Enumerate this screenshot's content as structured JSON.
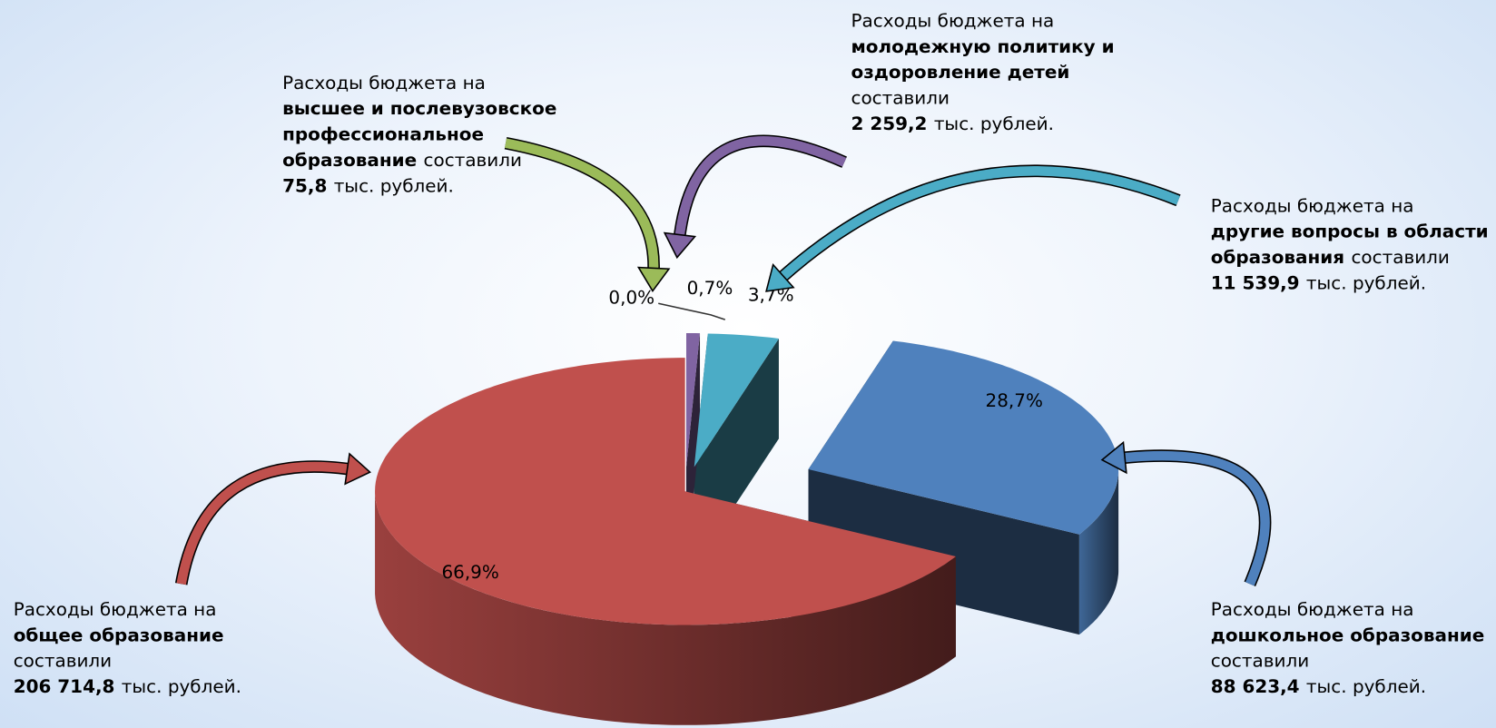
{
  "chart_data": {
    "type": "pie",
    "three_d": true,
    "values": [
      66.9,
      28.7,
      3.7,
      0.7,
      0.0
    ],
    "value_labels": [
      "66,9%",
      "28,7%",
      "3,7%",
      "0,7%",
      "0,0%"
    ],
    "colors": [
      "#c0504d",
      "#4f81bd",
      "#4bacc6",
      "#8064a2",
      "#9bbb59"
    ],
    "callouts": [
      {
        "lines": [
          [
            {
              "text": "Расходы бюджета на"
            }
          ],
          [
            {
              "text": "общее образование",
              "bold": true
            }
          ],
          [
            {
              "text": "составили"
            }
          ],
          [
            {
              "text": "206 714,8",
              "bold": true
            },
            {
              "text": "тыс. рублей."
            }
          ]
        ]
      },
      {
        "lines": [
          [
            {
              "text": "Расходы бюджета на"
            }
          ],
          [
            {
              "text": "дошкольное образование",
              "bold": true
            }
          ],
          [
            {
              "text": "составили"
            }
          ],
          [
            {
              "text": "88 623,4",
              "bold": true
            },
            {
              "text": "тыс. рублей."
            }
          ]
        ]
      },
      {
        "lines": [
          [
            {
              "text": "Расходы бюджета на"
            }
          ],
          [
            {
              "text": "другие вопросы в области",
              "bold": true
            }
          ],
          [
            {
              "text": "образования",
              "bold": true
            },
            {
              "text": "составили"
            }
          ],
          [
            {
              "text": "11 539,9",
              "bold": true
            },
            {
              "text": "тыс. рублей."
            }
          ]
        ]
      },
      {
        "lines": [
          [
            {
              "text": "Расходы бюджета на"
            }
          ],
          [
            {
              "text": "молодежную политику и",
              "bold": true
            }
          ],
          [
            {
              "text": "оздоровление детей",
              "bold": true
            }
          ],
          [
            {
              "text": "составили"
            }
          ],
          [
            {
              "text": "2 259,2",
              "bold": true
            },
            {
              "text": "тыс. рублей."
            }
          ]
        ]
      },
      {
        "lines": [
          [
            {
              "text": "Расходы бюджета на"
            }
          ],
          [
            {
              "text": "высшее и послевузовское",
              "bold": true
            }
          ],
          [
            {
              "text": "профессиональное",
              "bold": true
            }
          ],
          [
            {
              "text": "образование",
              "bold": true
            },
            {
              "text": "составили"
            }
          ],
          [
            {
              "text": "75,8",
              "bold": true
            },
            {
              "text": "тыс. рублей."
            }
          ]
        ]
      }
    ]
  }
}
